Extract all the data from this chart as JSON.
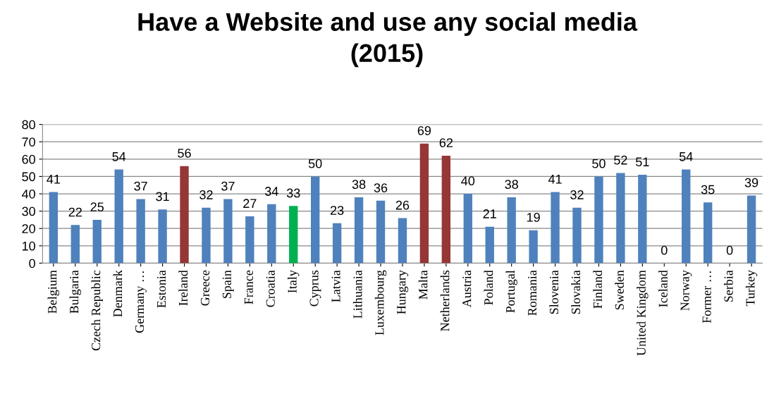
{
  "chart_data": {
    "type": "bar",
    "title": "Have a Website and use any social media\n(2015)",
    "categories": [
      "Belgium",
      "Bulgaria",
      "Czech Republic",
      "Denmark",
      "Germany …",
      "Estonia",
      "Ireland",
      "Greece",
      "Spain",
      "France",
      "Croatia",
      "Italy",
      "Cyprus",
      "Latvia",
      "Lithuania",
      "Luxembourg",
      "Hungary",
      "Malta",
      "Netherlands",
      "Austria",
      "Poland",
      "Portugal",
      "Romania",
      "Slovenia",
      "Slovakia",
      "Finland",
      "Sweden",
      "United Kingdom",
      "Iceland",
      "Norway",
      "Former …",
      "Serbia",
      "Turkey"
    ],
    "values": [
      41,
      22,
      25,
      54,
      37,
      31,
      56,
      32,
      37,
      27,
      34,
      33,
      50,
      23,
      38,
      36,
      26,
      69,
      62,
      40,
      21,
      38,
      19,
      41,
      32,
      50,
      52,
      51,
      0,
      54,
      35,
      0,
      39
    ],
    "colors": [
      "#4f81bd",
      "#4f81bd",
      "#4f81bd",
      "#4f81bd",
      "#4f81bd",
      "#4f81bd",
      "#953735",
      "#4f81bd",
      "#4f81bd",
      "#4f81bd",
      "#4f81bd",
      "#00b050",
      "#4f81bd",
      "#4f81bd",
      "#4f81bd",
      "#4f81bd",
      "#4f81bd",
      "#953735",
      "#953735",
      "#4f81bd",
      "#4f81bd",
      "#4f81bd",
      "#4f81bd",
      "#4f81bd",
      "#4f81bd",
      "#4f81bd",
      "#4f81bd",
      "#4f81bd",
      "#4f81bd",
      "#4f81bd",
      "#4f81bd",
      "#4f81bd",
      "#4f81bd"
    ],
    "ylim": [
      0,
      80
    ],
    "yticks": [
      0,
      10,
      20,
      30,
      40,
      50,
      60,
      70,
      80
    ],
    "grid": "y",
    "data_labels": true
  }
}
